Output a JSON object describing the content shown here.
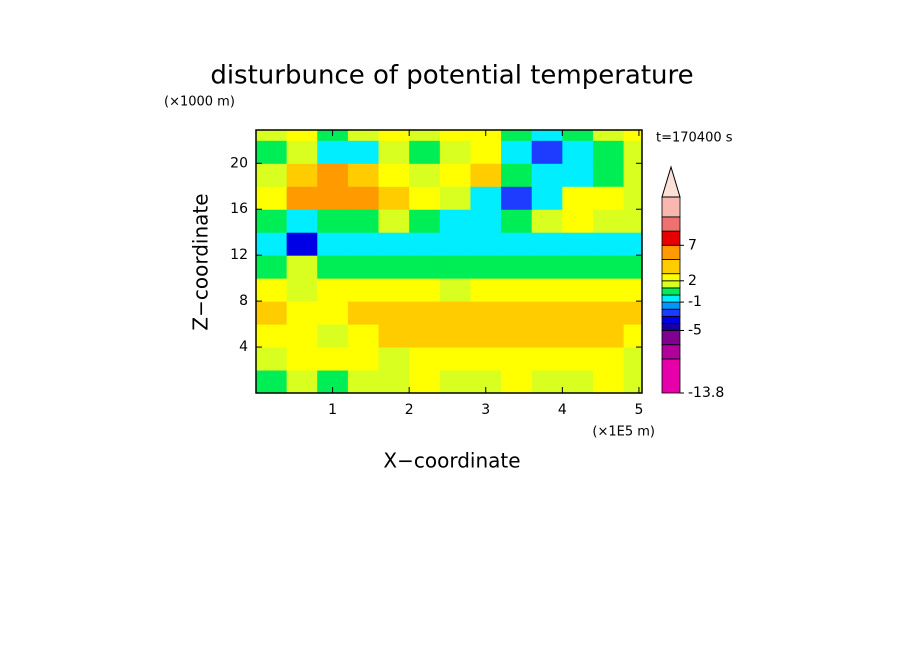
{
  "chart_data": {
    "type": "contour",
    "title": "disturbunce of potential temperature",
    "y_unit_label": "(×1000 m)",
    "x_unit_label": "(×1E5 m)",
    "time_label": "t=170400 s",
    "xlabel": "X−coordinate",
    "ylabel": "Z−coordinate",
    "xlim": [
      0,
      5.04
    ],
    "ylim": [
      0,
      22.9
    ],
    "xticks": [
      1,
      2,
      3,
      4,
      5
    ],
    "yticks": [
      4,
      8,
      12,
      16,
      20
    ],
    "x": [
      0.2,
      0.6,
      1.0,
      1.4,
      1.8,
      2.2,
      2.6,
      3.0,
      3.4,
      3.8,
      4.2,
      4.6,
      5.0
    ],
    "y": [
      1,
      3,
      5,
      7,
      9,
      11,
      13,
      15,
      17,
      19,
      21,
      23
    ],
    "z": [
      [
        0.5,
        1.5,
        0.5,
        1.5,
        1.5,
        2.5,
        1.5,
        1.5,
        2.5,
        1.5,
        1.5,
        2.5,
        1.5
      ],
      [
        1.5,
        2.5,
        2.5,
        2.5,
        1.5,
        2.5,
        2.5,
        2.5,
        2.5,
        2.5,
        2.5,
        2.5,
        1.5
      ],
      [
        2.5,
        2.5,
        1.5,
        2.5,
        3.5,
        3.5,
        3.5,
        3.5,
        4,
        4,
        3.5,
        3.5,
        2.5
      ],
      [
        3.5,
        2.5,
        2.5,
        3.5,
        3.5,
        3.5,
        3.5,
        3.5,
        3.5,
        3.5,
        3.5,
        3.5,
        3.5
      ],
      [
        2.5,
        1.5,
        2.5,
        2.5,
        2.5,
        2.5,
        1.5,
        2.5,
        2.5,
        2.5,
        2.5,
        2.5,
        2.5
      ],
      [
        0.5,
        1.5,
        0.5,
        0.5,
        0.5,
        0.5,
        0.5,
        0.5,
        0.5,
        0.5,
        0.5,
        0.5,
        0.5
      ],
      [
        -0.5,
        -3.5,
        -0.5,
        -0.5,
        -0.5,
        -0.5,
        -0.5,
        -0.5,
        -0.5,
        -0.5,
        -0.5,
        -0.5,
        -0.5
      ],
      [
        0.5,
        -0.5,
        0.5,
        0.5,
        1.5,
        0.5,
        -0.5,
        -0.5,
        0.5,
        1.5,
        2.5,
        1.5,
        1.5
      ],
      [
        2.5,
        5,
        6,
        5,
        4,
        2.5,
        1.5,
        -0.5,
        -2.5,
        -0.5,
        2.5,
        2.5,
        1.5
      ],
      [
        1.5,
        4,
        5,
        4,
        2.5,
        1.5,
        2.5,
        3.5,
        0.5,
        -0.5,
        -0.5,
        0.5,
        1.5
      ],
      [
        0.5,
        1.5,
        -0.5,
        -0.5,
        1.5,
        0.5,
        1.5,
        2.5,
        -0.5,
        -2.5,
        -0.5,
        0.5,
        1.5
      ],
      [
        1.5,
        2.5,
        0.5,
        1.5,
        2.5,
        1.5,
        2.5,
        2.5,
        0.5,
        -0.5,
        0.5,
        1.5,
        2.5
      ]
    ],
    "levels": [
      -13.8,
      -9,
      -7,
      -5,
      -4,
      -3,
      -2,
      -1,
      0,
      1,
      2,
      3,
      5,
      7,
      9,
      11,
      13.8
    ],
    "colors": [
      "#e600aa",
      "#b0009e",
      "#800090",
      "#1400a0",
      "#0000e6",
      "#1e3cff",
      "#0096ff",
      "#00eeff",
      "#00ee55",
      "#d8ff20",
      "#ffff00",
      "#ffcc00",
      "#ff9a00",
      "#e60000",
      "#f07070",
      "#f8b8b0"
    ],
    "over_color": "#fce0d8",
    "colorbar_ticks": [
      7,
      2,
      -1,
      -5,
      -13.8
    ]
  }
}
